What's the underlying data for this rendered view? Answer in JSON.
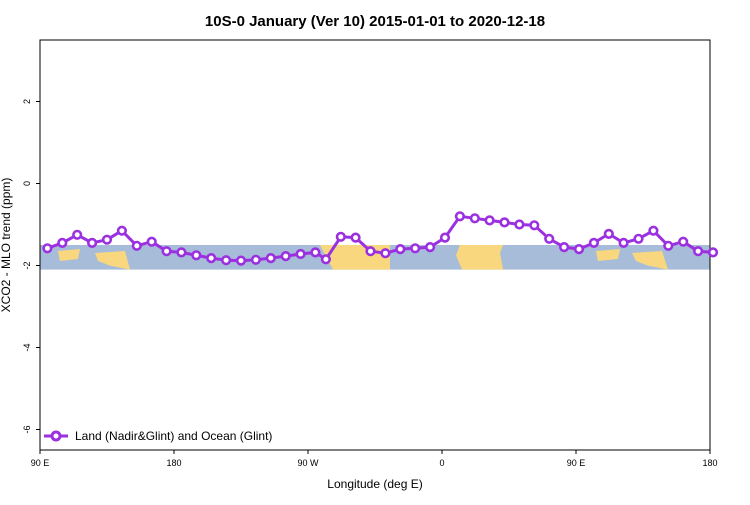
{
  "chart_data": {
    "type": "line",
    "title": "10S-0 January (Ver 10)   2015-01-01 to 2020-12-18",
    "xlabel": "Longitude (deg E)",
    "ylabel": "XCO2 - MLO trend (ppm)",
    "xlim": [
      90,
      540
    ],
    "ylim": [
      -6.5,
      3.5
    ],
    "x_ticks": [
      {
        "value": 90,
        "label": "90 E"
      },
      {
        "value": 180,
        "label": "180"
      },
      {
        "value": 270,
        "label": "90 W"
      },
      {
        "value": 360,
        "label": "0"
      },
      {
        "value": 450,
        "label": "90 E"
      },
      {
        "value": 540,
        "label": "180"
      }
    ],
    "y_ticks": [
      {
        "value": 2,
        "label": "2"
      },
      {
        "value": 0,
        "label": "0"
      },
      {
        "value": -2,
        "label": "-2"
      },
      {
        "value": -4,
        "label": "-4"
      },
      {
        "value": -6,
        "label": "-6"
      }
    ],
    "grid": false,
    "legend_position": "bottom-left",
    "background_map": {
      "latitude_band": "10S-0",
      "y_range": [
        -2.1,
        -1.5
      ],
      "ocean_color": "#a7bcd8",
      "land_color": "#f9d77f"
    },
    "series": [
      {
        "name": "Land (Nadir&Glint) and Ocean (Glint)",
        "color": "#9b30e0",
        "x": [
          95,
          105,
          115,
          125,
          135,
          145,
          155,
          165,
          175,
          185,
          195,
          205,
          215,
          225,
          235,
          245,
          255,
          265,
          275,
          282,
          292,
          302,
          312,
          322,
          332,
          342,
          352,
          362,
          372,
          382,
          392,
          402,
          412,
          422,
          432,
          442,
          452,
          462,
          472,
          482,
          492,
          502,
          512,
          522,
          532,
          542
        ],
        "y": [
          -1.58,
          -1.45,
          -1.25,
          -1.45,
          -1.37,
          -1.15,
          -1.52,
          -1.42,
          -1.65,
          -1.68,
          -1.75,
          -1.82,
          -1.87,
          -1.88,
          -1.86,
          -1.82,
          -1.77,
          -1.72,
          -1.68,
          -1.85,
          -1.3,
          -1.32,
          -1.65,
          -1.7,
          -1.6,
          -1.58,
          -1.55,
          -1.32,
          -0.8,
          -0.85,
          -0.9,
          -0.95,
          -1.0,
          -1.02,
          -1.35,
          -1.55,
          -1.6,
          -1.45,
          -1.23,
          -1.45,
          -1.35,
          -1.15,
          -1.52,
          -1.42,
          -1.65,
          -1.68
        ]
      }
    ]
  }
}
